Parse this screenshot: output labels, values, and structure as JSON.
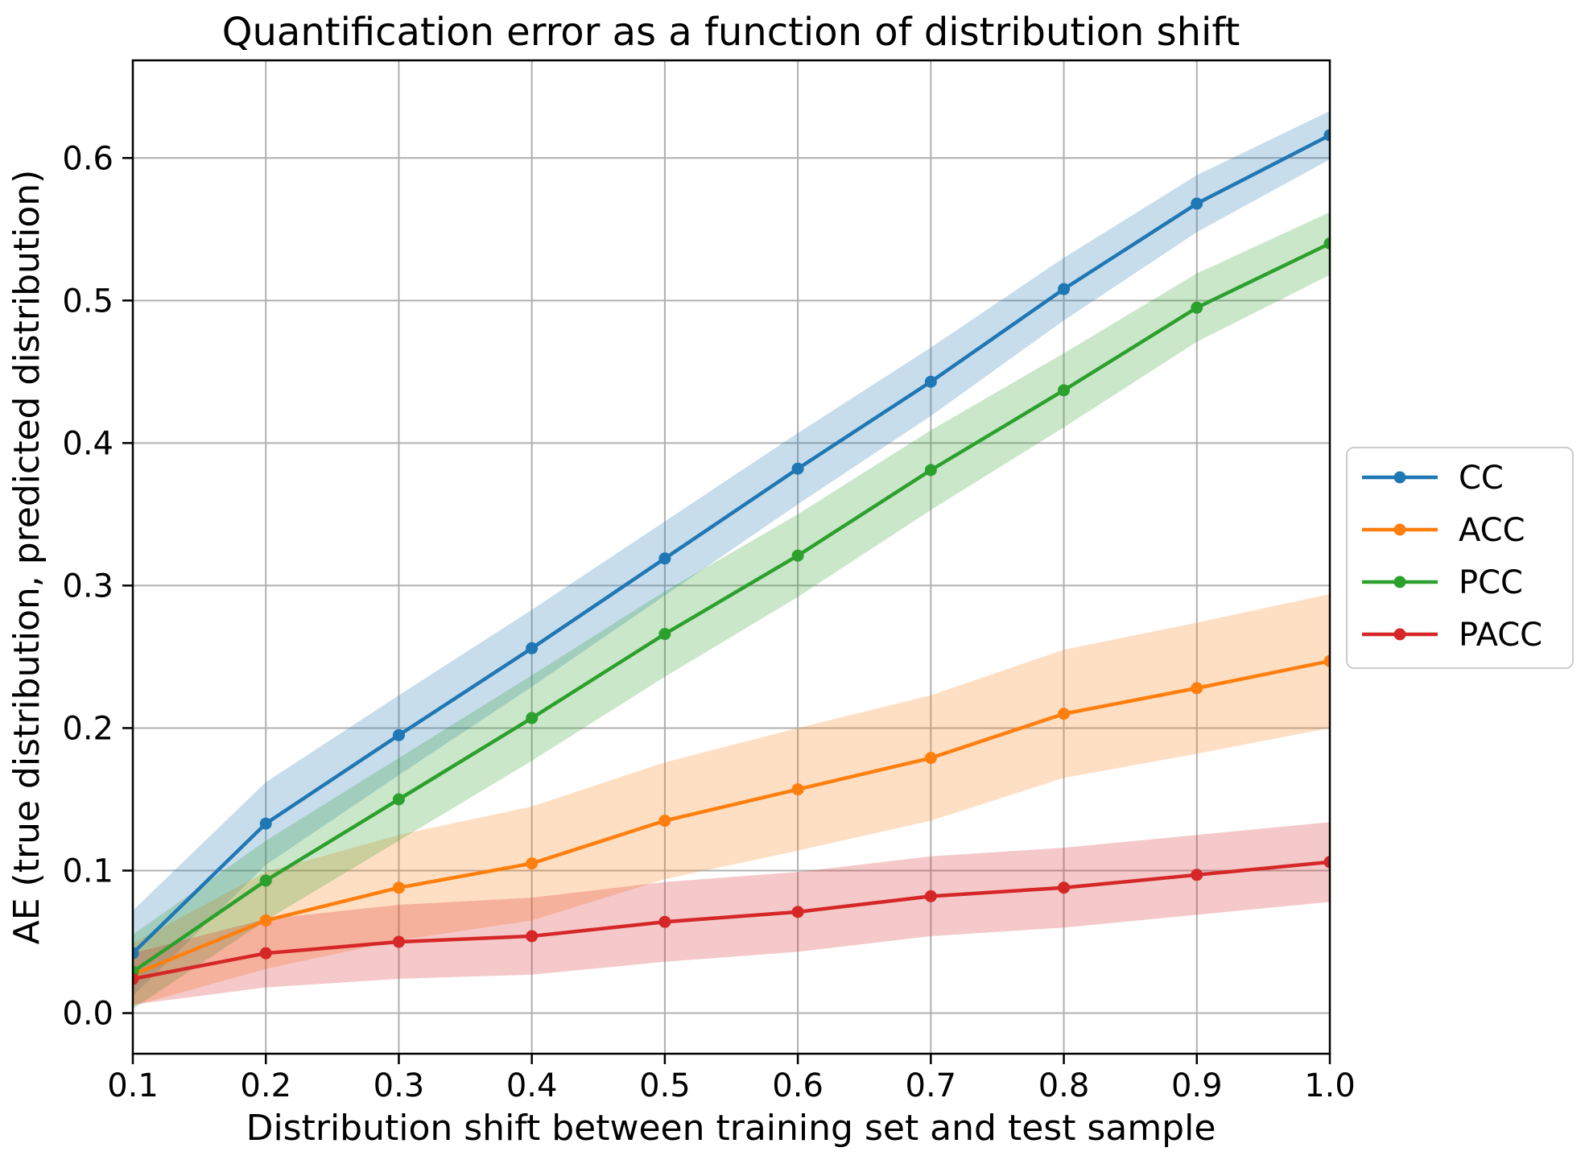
{
  "chart_data": {
    "type": "line",
    "title": "Quantification error as a function of distribution shift",
    "xlabel": "Distribution shift between training set and test sample",
    "ylabel": "AE (true distribution, predicted distribution)",
    "x": [
      0.1,
      0.2,
      0.3,
      0.4,
      0.5,
      0.6,
      0.7,
      0.8,
      0.9,
      1.0
    ],
    "x_tick_labels": [
      "0.1",
      "0.2",
      "0.3",
      "0.4",
      "0.5",
      "0.6",
      "0.7",
      "0.8",
      "0.9",
      "1.0"
    ],
    "y_ticks": [
      0.0,
      0.1,
      0.2,
      0.3,
      0.4,
      0.5,
      0.6
    ],
    "y_tick_labels": [
      "0.0",
      "0.1",
      "0.2",
      "0.3",
      "0.4",
      "0.5",
      "0.6"
    ],
    "xlim": [
      0.1,
      1.0
    ],
    "ylim": [
      -0.0285,
      0.6685
    ],
    "grid": true,
    "grid_color": "#b0b0b0",
    "background": "#ffffff",
    "band_alpha": 0.25,
    "marker": "circle",
    "legend_position": "outside-right",
    "series": [
      {
        "name": "CC",
        "color": "#1f77b4",
        "values": [
          0.042,
          0.133,
          0.195,
          0.256,
          0.319,
          0.382,
          0.443,
          0.508,
          0.568,
          0.616
        ],
        "band_halfwidth": [
          0.03,
          0.029,
          0.028,
          0.027,
          0.026,
          0.025,
          0.024,
          0.022,
          0.02,
          0.017
        ]
      },
      {
        "name": "ACC",
        "color": "#ff7f0e",
        "values": [
          0.027,
          0.065,
          0.088,
          0.105,
          0.135,
          0.157,
          0.179,
          0.21,
          0.228,
          0.247
        ],
        "band_halfwidth": [
          0.022,
          0.034,
          0.037,
          0.04,
          0.041,
          0.043,
          0.044,
          0.045,
          0.046,
          0.047
        ]
      },
      {
        "name": "PCC",
        "color": "#2ca02c",
        "values": [
          0.029,
          0.093,
          0.15,
          0.207,
          0.266,
          0.321,
          0.381,
          0.437,
          0.495,
          0.54
        ],
        "band_halfwidth": [
          0.026,
          0.028,
          0.029,
          0.03,
          0.03,
          0.029,
          0.028,
          0.026,
          0.024,
          0.022
        ]
      },
      {
        "name": "PACC",
        "color": "#d62728",
        "values": [
          0.024,
          0.042,
          0.05,
          0.054,
          0.064,
          0.071,
          0.082,
          0.088,
          0.097,
          0.106
        ],
        "band_halfwidth": [
          0.018,
          0.024,
          0.026,
          0.027,
          0.028,
          0.028,
          0.028,
          0.028,
          0.028,
          0.028
        ]
      }
    ]
  }
}
